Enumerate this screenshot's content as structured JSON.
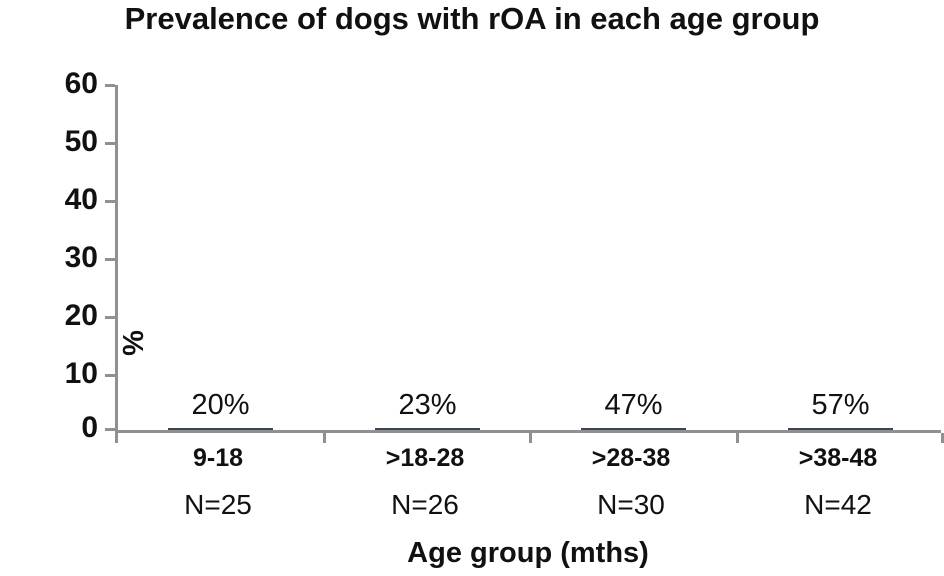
{
  "title": "Prevalence of dogs with rOA in each age group",
  "chart_data": {
    "type": "bar",
    "title": "Prevalence of dogs with rOA in each age group",
    "categories": [
      "9-18",
      ">18-28",
      ">28-38",
      ">38-48"
    ],
    "values": [
      20,
      23,
      47,
      57
    ],
    "bar_labels": [
      "20%",
      "23%",
      "47%",
      "57%"
    ],
    "n_labels": [
      "N=25",
      "N=26",
      "N=30",
      "N=42"
    ],
    "xlabel": "Age group (mths)",
    "ylabel": "%",
    "ylim": [
      0,
      60
    ],
    "yticks": [
      0,
      10,
      20,
      30,
      40,
      50,
      60
    ],
    "grid": false,
    "legend": "none",
    "bar_fill": "#4F81BD",
    "bar_border": "#3D4655",
    "axis_color": "#909090",
    "text_color": "#111111"
  }
}
